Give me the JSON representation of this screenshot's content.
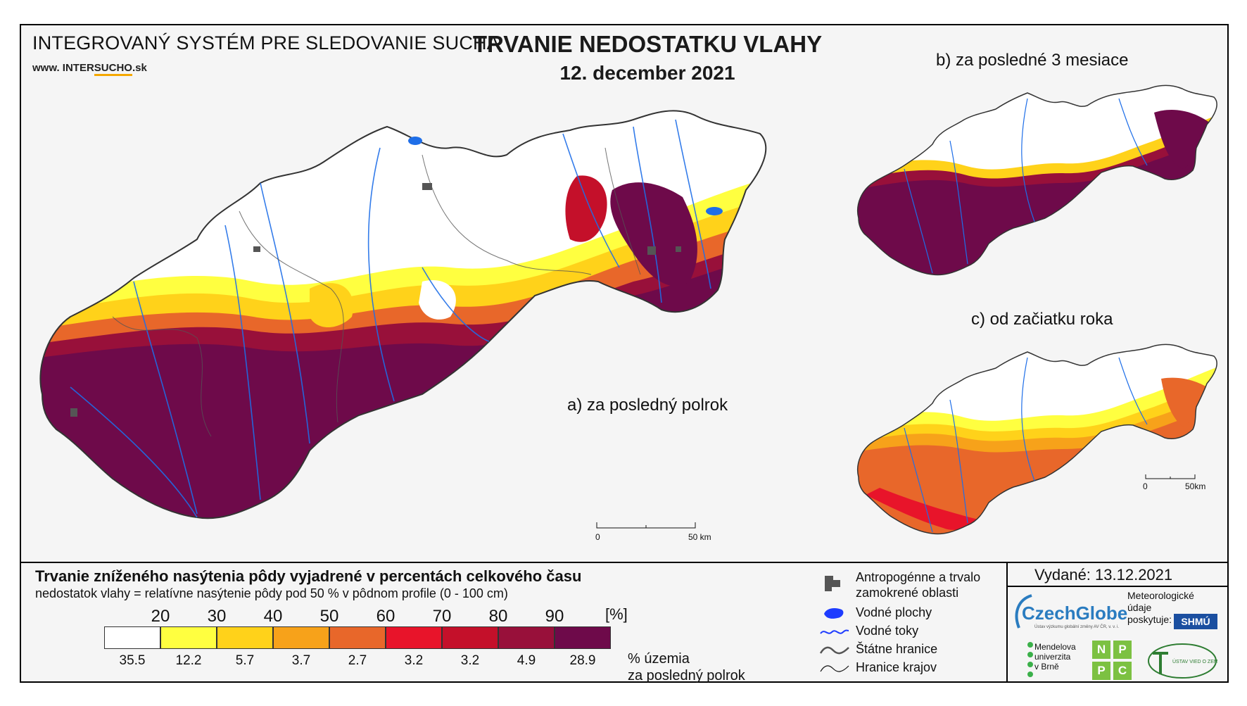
{
  "header": {
    "organization": "INTEGROVANÝ SYSTÉM PRE SLEDOVANIE SUCHA",
    "url_prefix": "www. INTER",
    "url_highlight": "SUCHO",
    "url_suffix": ".sk",
    "title": "TRVANIE NEDOSTATKU VLAHY",
    "date": "12. december 2021"
  },
  "panels": {
    "a": "a) za posledný polrok",
    "b": "b) za posledné 3 mesiace",
    "c": "c) od začiatku roka"
  },
  "scalebars": {
    "main": {
      "zero": "0",
      "end": "50 km"
    },
    "small": {
      "zero": "0",
      "end": "50km"
    }
  },
  "legend": {
    "title": "Trvanie zníženého nasýtenia pôdy vyjadrené v percentách celkového času",
    "subtitle": "nedostatok vlahy = relatívne nasýtenie pôdy pod 50 % v pôdnom profile (0 - 100 cm)",
    "thresholds": [
      "20",
      "30",
      "40",
      "50",
      "60",
      "70",
      "80",
      "90"
    ],
    "unit": "[%]",
    "classes": [
      {
        "color": "#ffffff",
        "share": "35.5"
      },
      {
        "color": "#ffff40",
        "share": "12.2"
      },
      {
        "color": "#ffd21a",
        "share": "5.7"
      },
      {
        "color": "#f7a21a",
        "share": "3.7"
      },
      {
        "color": "#e8672a",
        "share": "2.7"
      },
      {
        "color": "#e8142a",
        "share": "3.2"
      },
      {
        "color": "#c4102a",
        "share": "3.2"
      },
      {
        "color": "#98103a",
        "share": "4.9"
      },
      {
        "color": "#6e0a4a",
        "share": "28.9"
      }
    ],
    "share_label_1": "% územia",
    "share_label_2": "za posledný polrok"
  },
  "symbols": {
    "anthropogenic_1": "Antropogénne a trvalo",
    "anthropogenic_2": "zamokrené oblasti",
    "water_bodies": "Vodné plochy",
    "streams": "Vodné toky",
    "state_border": "Štátne hranice",
    "region_border": "Hranice krajov"
  },
  "issued": "Vydané: 13.12.2021",
  "logos": {
    "czechglobe": "CzechGlobe",
    "czechglobe_sub": "Ústav výzkumu globální změny AV ČR, v. v. i.",
    "meteo_1": "Meteorologické",
    "meteo_2": "údaje",
    "meteo_3": "poskytuje:",
    "shmu": "SHMÚ",
    "mendel_1": "Mendelova",
    "mendel_2": "univerzita",
    "mendel_3": "v Brně",
    "nppc": [
      "N",
      "P",
      "P",
      "C"
    ],
    "uvz": "ÚSTAV VIED O ZEMI"
  },
  "colors": {
    "water": "#1e6ee8",
    "anthropogenic": "#555555",
    "border": "#333333"
  }
}
